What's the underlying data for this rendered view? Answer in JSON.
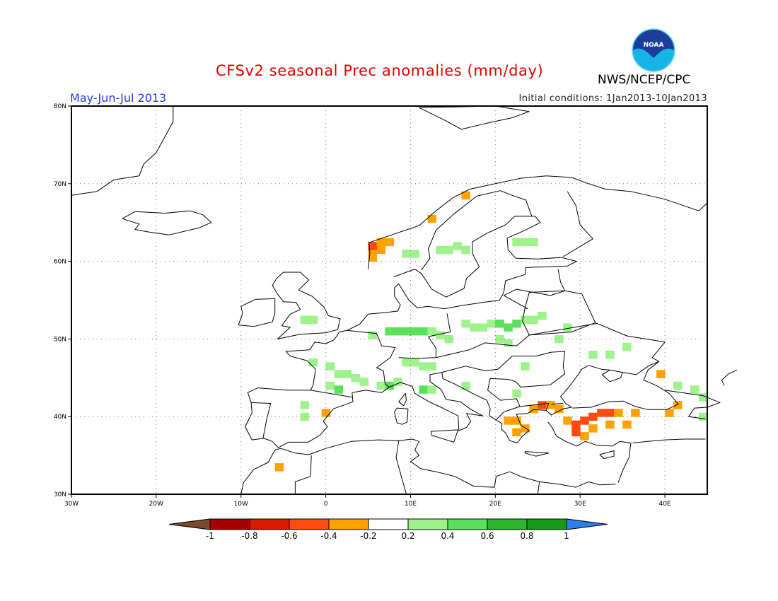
{
  "header": {
    "title": "CFSv2 seasonal Prec anomalies (mm/day)",
    "agency": "NWS/NCEP/CPC",
    "period": "May-Jun-Jul 2013",
    "initial_conditions": "Initial conditions: 1Jan2013-10Jan2013",
    "logo_text": "NOAA"
  },
  "map": {
    "lon_range": [
      -30,
      45
    ],
    "lat_range": [
      30,
      80
    ],
    "lon_ticks": [
      {
        "value": -30,
        "label": "30W"
      },
      {
        "value": -20,
        "label": "20W"
      },
      {
        "value": -10,
        "label": "10W"
      },
      {
        "value": 0,
        "label": "0"
      },
      {
        "value": 10,
        "label": "10E"
      },
      {
        "value": 20,
        "label": "20E"
      },
      {
        "value": 30,
        "label": "30E"
      },
      {
        "value": 40,
        "label": "40E"
      }
    ],
    "lat_ticks": [
      {
        "value": 30,
        "label": "30N"
      },
      {
        "value": 40,
        "label": "40N"
      },
      {
        "value": 50,
        "label": "50N"
      },
      {
        "value": 60,
        "label": "60N"
      },
      {
        "value": 70,
        "label": "70N"
      },
      {
        "value": 80,
        "label": "80N"
      }
    ],
    "grid": "dotted",
    "anomaly_cells": [
      {
        "lon": 5.5,
        "lat": 60.5,
        "value": -0.3
      },
      {
        "lon": 5.5,
        "lat": 61.5,
        "value": -0.3
      },
      {
        "lon": 6.5,
        "lat": 61.5,
        "value": -0.3
      },
      {
        "lon": 5.5,
        "lat": 62.0,
        "value": -0.5
      },
      {
        "lon": 6.5,
        "lat": 62.5,
        "value": -0.3
      },
      {
        "lon": 7.5,
        "lat": 62.5,
        "value": -0.3
      },
      {
        "lon": 12.5,
        "lat": 65.5,
        "value": -0.3
      },
      {
        "lon": 16.5,
        "lat": 68.5,
        "value": -0.3
      },
      {
        "lon": 9.5,
        "lat": 61.0,
        "value": 0.3
      },
      {
        "lon": 10.5,
        "lat": 61.0,
        "value": 0.3
      },
      {
        "lon": 13.5,
        "lat": 61.5,
        "value": 0.3
      },
      {
        "lon": 14.5,
        "lat": 61.5,
        "value": 0.3
      },
      {
        "lon": 15.5,
        "lat": 62.0,
        "value": 0.3
      },
      {
        "lon": 16.5,
        "lat": 61.5,
        "value": 0.3
      },
      {
        "lon": 22.5,
        "lat": 62.5,
        "value": 0.3
      },
      {
        "lon": 23.5,
        "lat": 62.5,
        "value": 0.3
      },
      {
        "lon": 24.5,
        "lat": 62.5,
        "value": 0.3
      },
      {
        "lon": -2.5,
        "lat": 52.5,
        "value": 0.3
      },
      {
        "lon": -1.5,
        "lat": 52.5,
        "value": 0.3
      },
      {
        "lon": 5.5,
        "lat": 50.5,
        "value": 0.3
      },
      {
        "lon": 7.5,
        "lat": 51.0,
        "value": 0.5
      },
      {
        "lon": 8.5,
        "lat": 51.0,
        "value": 0.5
      },
      {
        "lon": 9.5,
        "lat": 51.0,
        "value": 0.5
      },
      {
        "lon": 10.5,
        "lat": 51.0,
        "value": 0.5
      },
      {
        "lon": 11.5,
        "lat": 51.0,
        "value": 0.5
      },
      {
        "lon": 12.5,
        "lat": 51.0,
        "value": 0.3
      },
      {
        "lon": 13.5,
        "lat": 50.5,
        "value": 0.3
      },
      {
        "lon": 14.5,
        "lat": 50.0,
        "value": 0.3
      },
      {
        "lon": 16.5,
        "lat": 52.0,
        "value": 0.3
      },
      {
        "lon": 17.5,
        "lat": 51.5,
        "value": 0.3
      },
      {
        "lon": 18.5,
        "lat": 51.5,
        "value": 0.3
      },
      {
        "lon": 19.5,
        "lat": 52.0,
        "value": 0.3
      },
      {
        "lon": 20.5,
        "lat": 52.0,
        "value": 0.5
      },
      {
        "lon": 21.5,
        "lat": 51.5,
        "value": 0.5
      },
      {
        "lon": 22.5,
        "lat": 52.0,
        "value": 0.5
      },
      {
        "lon": 23.5,
        "lat": 52.5,
        "value": 0.3
      },
      {
        "lon": 24.5,
        "lat": 52.5,
        "value": 0.3
      },
      {
        "lon": 25.5,
        "lat": 53.0,
        "value": 0.3
      },
      {
        "lon": 20.5,
        "lat": 50.0,
        "value": 0.3
      },
      {
        "lon": 21.5,
        "lat": 49.5,
        "value": 0.3
      },
      {
        "lon": 28.5,
        "lat": 51.5,
        "value": 0.3
      },
      {
        "lon": 27.5,
        "lat": 50.0,
        "value": 0.3
      },
      {
        "lon": -1.5,
        "lat": 47.0,
        "value": 0.3
      },
      {
        "lon": 0.5,
        "lat": 46.5,
        "value": 0.3
      },
      {
        "lon": 1.5,
        "lat": 45.5,
        "value": 0.3
      },
      {
        "lon": 2.5,
        "lat": 45.5,
        "value": 0.3
      },
      {
        "lon": 3.5,
        "lat": 45.0,
        "value": 0.3
      },
      {
        "lon": 4.5,
        "lat": 44.5,
        "value": 0.3
      },
      {
        "lon": 0.5,
        "lat": 44.0,
        "value": 0.3
      },
      {
        "lon": 1.5,
        "lat": 43.5,
        "value": 0.5
      },
      {
        "lon": 6.5,
        "lat": 44.0,
        "value": 0.3
      },
      {
        "lon": 7.5,
        "lat": 44.0,
        "value": 0.5
      },
      {
        "lon": 8.5,
        "lat": 44.5,
        "value": 0.3
      },
      {
        "lon": 9.5,
        "lat": 47.0,
        "value": 0.3
      },
      {
        "lon": 10.5,
        "lat": 47.0,
        "value": 0.3
      },
      {
        "lon": 11.5,
        "lat": 46.5,
        "value": 0.3
      },
      {
        "lon": 12.5,
        "lat": 46.5,
        "value": 0.3
      },
      {
        "lon": 11.5,
        "lat": 43.5,
        "value": 0.5
      },
      {
        "lon": 12.5,
        "lat": 43.5,
        "value": 0.3
      },
      {
        "lon": 16.5,
        "lat": 44.0,
        "value": 0.3
      },
      {
        "lon": 23.5,
        "lat": 46.5,
        "value": 0.3
      },
      {
        "lon": 31.5,
        "lat": 48.0,
        "value": 0.3
      },
      {
        "lon": 33.5,
        "lat": 48.0,
        "value": 0.3
      },
      {
        "lon": 35.5,
        "lat": 49.0,
        "value": 0.3
      },
      {
        "lon": 41.5,
        "lat": 44.0,
        "value": 0.3
      },
      {
        "lon": 43.5,
        "lat": 43.5,
        "value": 0.3
      },
      {
        "lon": 44.5,
        "lat": 42.5,
        "value": 0.3
      },
      {
        "lon": 22.5,
        "lat": 43.0,
        "value": 0.3
      },
      {
        "lon": -2.5,
        "lat": 41.5,
        "value": 0.3
      },
      {
        "lon": -2.5,
        "lat": 40.0,
        "value": 0.3
      },
      {
        "lon": 44.5,
        "lat": 40.0,
        "value": 0.3
      },
      {
        "lon": 21.5,
        "lat": 39.5,
        "value": -0.3
      },
      {
        "lon": 22.5,
        "lat": 39.5,
        "value": -0.3
      },
      {
        "lon": 23.5,
        "lat": 38.5,
        "value": -0.3
      },
      {
        "lon": 22.5,
        "lat": 38.0,
        "value": -0.3
      },
      {
        "lon": 24.5,
        "lat": 41.0,
        "value": -0.3
      },
      {
        "lon": 25.5,
        "lat": 41.5,
        "value": -0.5
      },
      {
        "lon": 26.5,
        "lat": 41.5,
        "value": -0.3
      },
      {
        "lon": 27.5,
        "lat": 41.0,
        "value": -0.3
      },
      {
        "lon": 28.5,
        "lat": 39.5,
        "value": -0.3
      },
      {
        "lon": 29.5,
        "lat": 39.0,
        "value": -0.5
      },
      {
        "lon": 30.5,
        "lat": 39.5,
        "value": -0.5
      },
      {
        "lon": 31.5,
        "lat": 40.0,
        "value": -0.5
      },
      {
        "lon": 32.5,
        "lat": 40.5,
        "value": -0.5
      },
      {
        "lon": 33.5,
        "lat": 40.5,
        "value": -0.5
      },
      {
        "lon": 34.5,
        "lat": 40.5,
        "value": -0.3
      },
      {
        "lon": 31.5,
        "lat": 38.5,
        "value": -0.3
      },
      {
        "lon": 30.5,
        "lat": 37.5,
        "value": -0.3
      },
      {
        "lon": 29.5,
        "lat": 38.0,
        "value": -0.5
      },
      {
        "lon": 33.5,
        "lat": 39.0,
        "value": -0.3
      },
      {
        "lon": 35.5,
        "lat": 39.0,
        "value": -0.3
      },
      {
        "lon": 36.5,
        "lat": 40.5,
        "value": -0.3
      },
      {
        "lon": 39.5,
        "lat": 45.5,
        "value": -0.3
      },
      {
        "lon": 41.5,
        "lat": 41.5,
        "value": -0.3
      },
      {
        "lon": 40.5,
        "lat": 40.5,
        "value": -0.3
      },
      {
        "lon": 0.0,
        "lat": 40.5,
        "value": -0.3
      },
      {
        "lon": -5.5,
        "lat": 33.5,
        "value": -0.3
      }
    ]
  },
  "legend": {
    "bins": [
      {
        "label": "-1",
        "color": "#8b4a2b"
      },
      {
        "label": "-0.8",
        "color": "#a80000"
      },
      {
        "label": "-0.6",
        "color": "#dd1a00"
      },
      {
        "label": "-0.4",
        "color": "#ff4a10"
      },
      {
        "label": "-0.2",
        "color": "#ffa200"
      },
      {
        "label": "0.2",
        "color": "#ffffff"
      },
      {
        "label": "0.4",
        "color": "#9ef28c"
      },
      {
        "label": "0.6",
        "color": "#5ae05a"
      },
      {
        "label": "0.8",
        "color": "#2eb52e"
      },
      {
        "label": "1",
        "color": "#169b16"
      }
    ],
    "low_arrow_color": "#7a4a2a",
    "high_arrow_color": "#2f7ef0"
  }
}
